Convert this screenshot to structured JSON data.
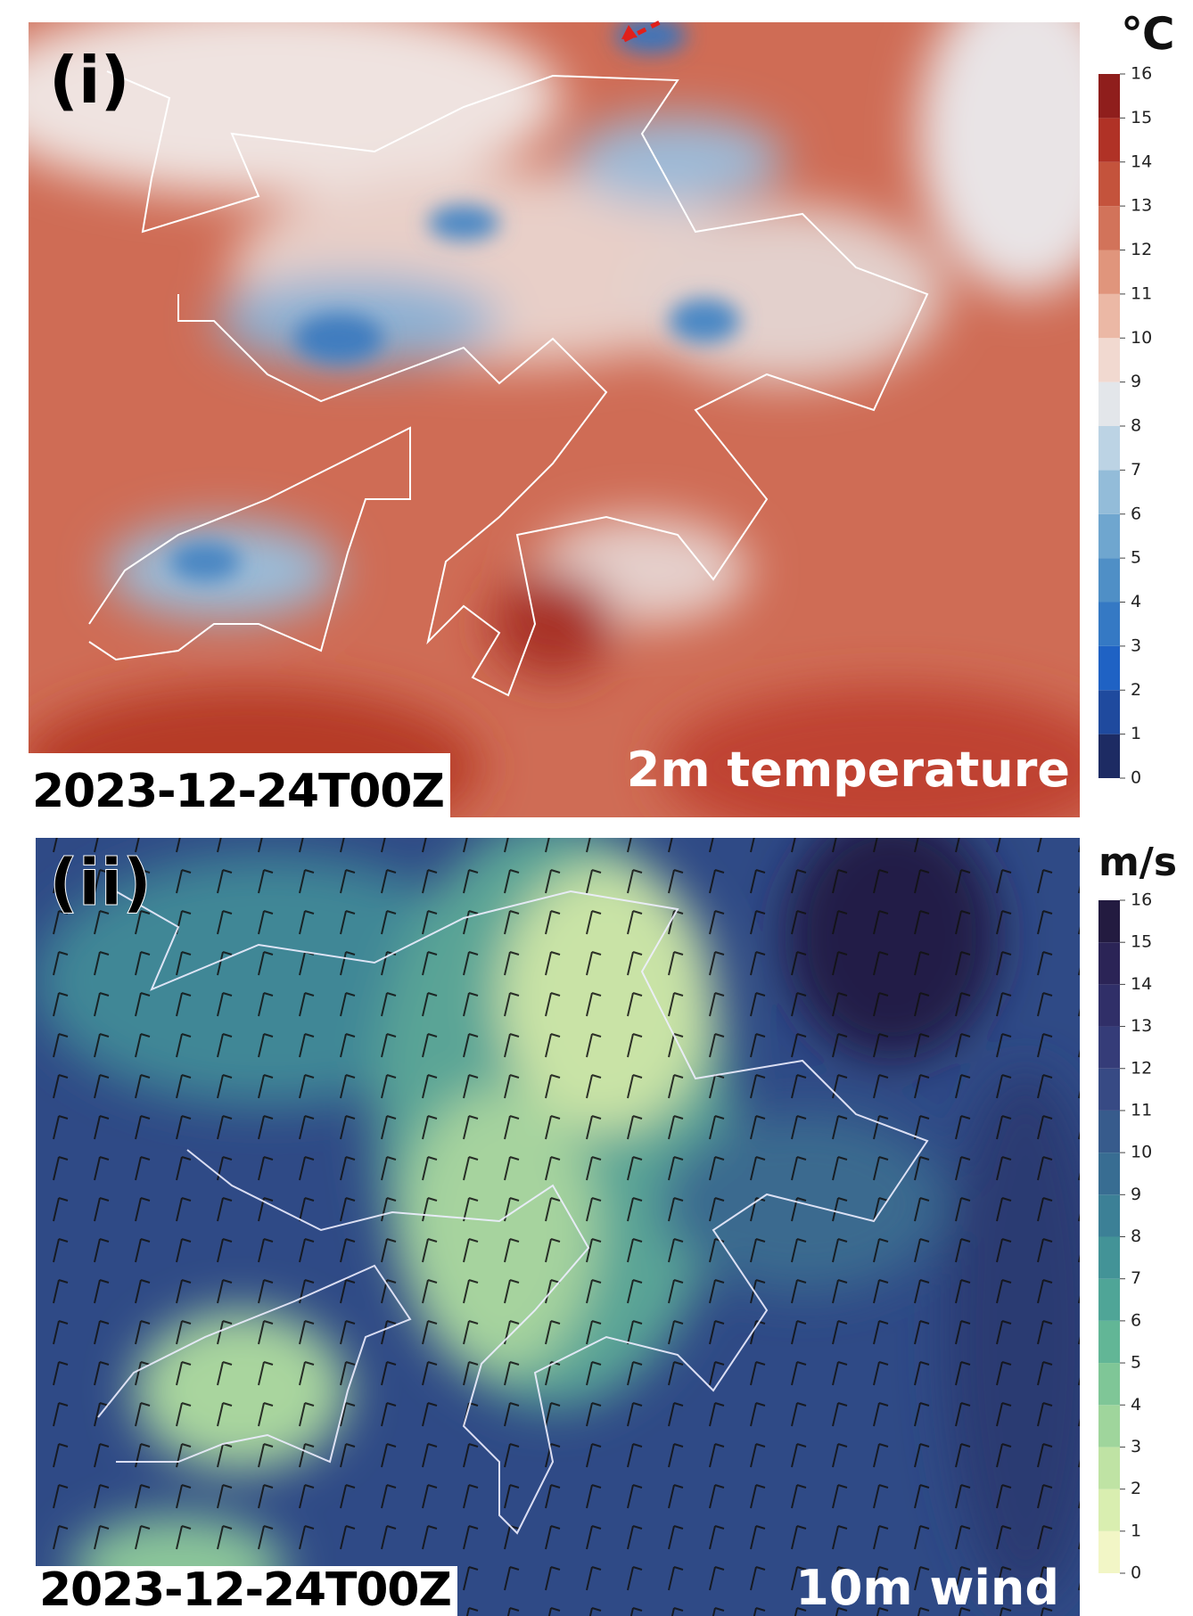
{
  "panels": [
    {
      "label": "(i)",
      "unit": "℃",
      "timestamp": "2023-12-24T00Z",
      "caption": "2m temperature",
      "colorbar": {
        "ticks": [
          0,
          1,
          2,
          3,
          4,
          5,
          6,
          7,
          8,
          9,
          10,
          11,
          12,
          13,
          14,
          15,
          16
        ],
        "colors": [
          "#1d2b63",
          "#1f4a9e",
          "#1f62c4",
          "#3579c4",
          "#4f8fc6",
          "#6fa6cf",
          "#93bcd9",
          "#bcd3e4",
          "#e3e6ea",
          "#f1d9d0",
          "#ebb8a5",
          "#e0957c",
          "#d2735a",
          "#c4533c",
          "#b03226",
          "#8f1e1c"
        ]
      }
    },
    {
      "label": "(ii)",
      "unit": "m/s",
      "timestamp": "2023-12-24T00Z",
      "caption": "10m wind",
      "colorbar": {
        "ticks": [
          0,
          1,
          2,
          3,
          4,
          5,
          6,
          7,
          8,
          9,
          10,
          11,
          12,
          13,
          14,
          15,
          16
        ],
        "colors": [
          "#f2f6c6",
          "#d9eeb0",
          "#bfe3a4",
          "#9fd59c",
          "#7fc697",
          "#62b696",
          "#4fa597",
          "#439397",
          "#3c8096",
          "#386d92",
          "#375b8c",
          "#374a84",
          "#353c78",
          "#302f68",
          "#2b2456",
          "#231b40"
        ]
      }
    }
  ]
}
